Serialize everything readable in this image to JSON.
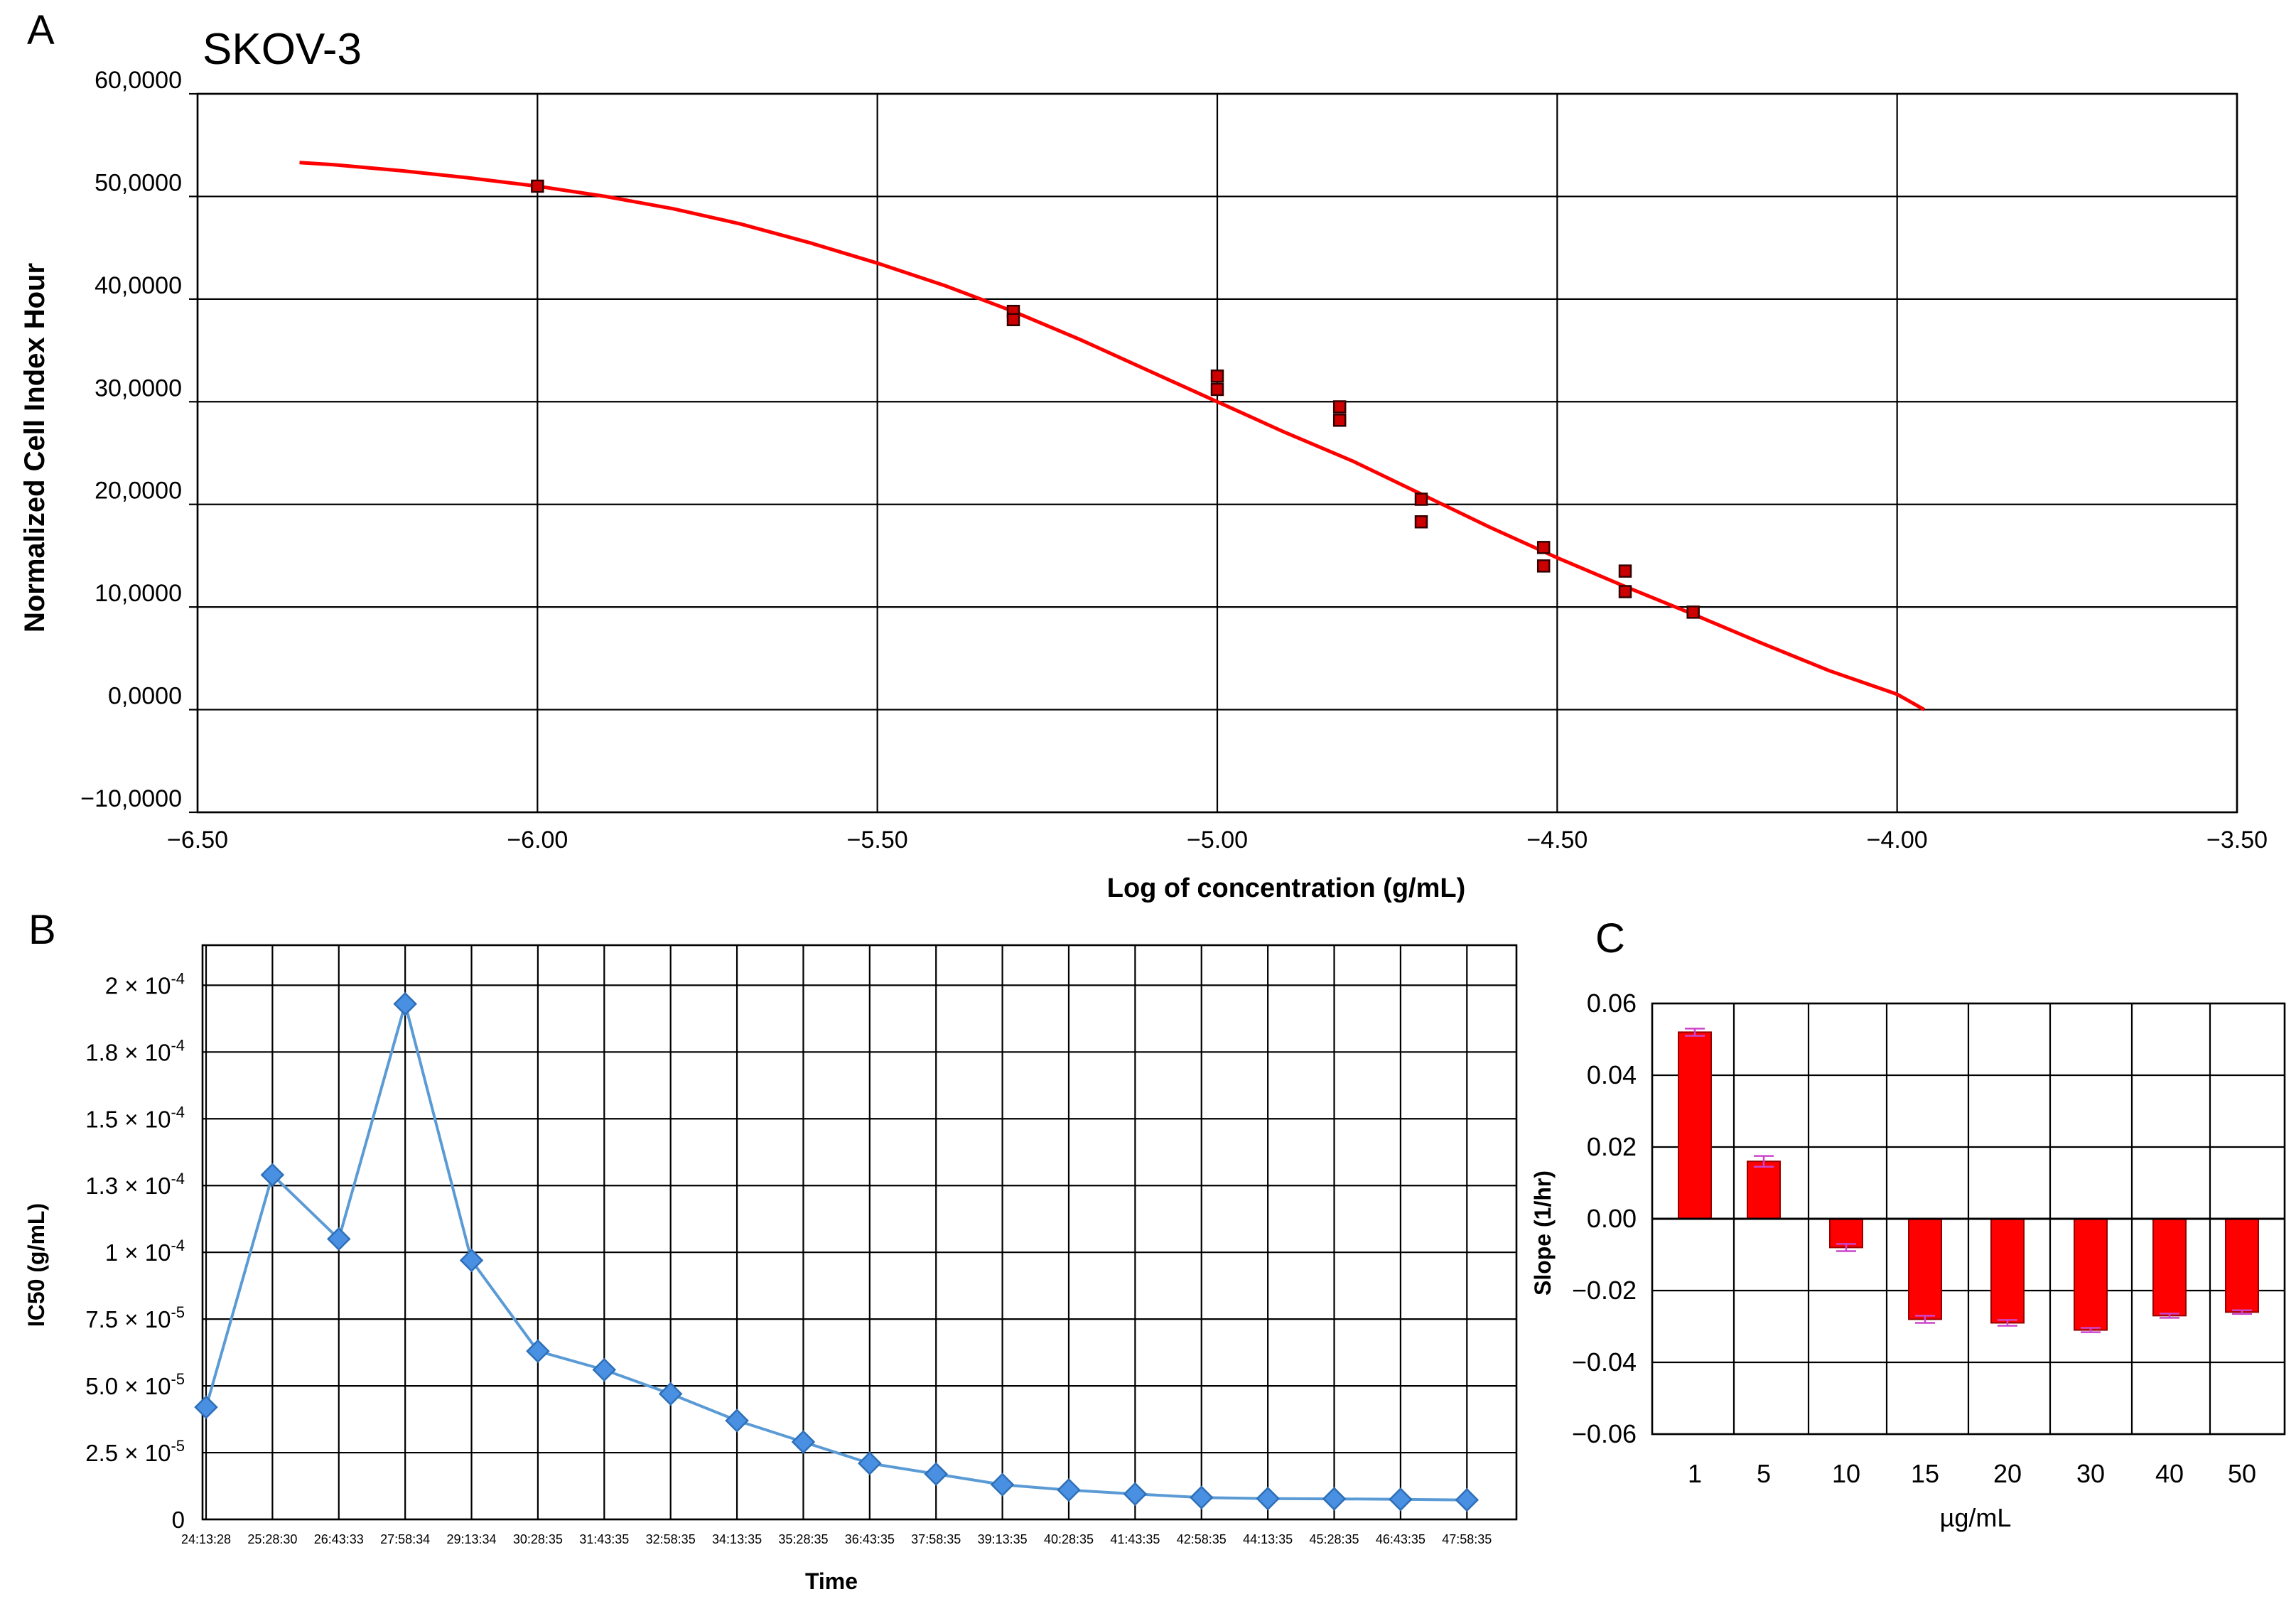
{
  "panels": {
    "a": {
      "letter": "A"
    },
    "b": {
      "letter": "B"
    },
    "c": {
      "letter": "C"
    }
  },
  "chart_data": [
    {
      "panel": "A",
      "type": "scatter",
      "title": "SKOV-3",
      "xlabel": "Log of concentration (g/mL)",
      "ylabel": "Normalized Cell Index Hour",
      "xlim": [
        -6.5,
        -3.5
      ],
      "ylim": [
        -10,
        60
      ],
      "x_ticks": [
        -6.5,
        -6.0,
        -5.5,
        -5.0,
        -4.5,
        -4.0,
        -3.5
      ],
      "x_tick_labels": [
        "−6.50",
        "−6.00",
        "−5.50",
        "−5.00",
        "−4.50",
        "−4.00",
        "−3.50"
      ],
      "y_ticks": [
        60,
        50,
        40,
        30,
        20,
        10,
        0,
        -10
      ],
      "y_tick_labels": [
        "60,0000",
        "50,0000",
        "40,0000",
        "30,0000",
        "20,0000",
        "10,0000",
        "0,0000",
        "−10,0000"
      ],
      "grid": true,
      "colors": {
        "fit": "#ff0000",
        "marker_fill": "#cc0000",
        "marker_edge": "#330000"
      },
      "points": {
        "x": [
          -6.0,
          -5.3,
          -5.3,
          -5.0,
          -5.0,
          -4.82,
          -4.82,
          -4.7,
          -4.7,
          -4.52,
          -4.52,
          -4.4,
          -4.4,
          -4.3
        ],
        "y": [
          51.0,
          38.8,
          38.0,
          32.5,
          31.2,
          29.5,
          28.2,
          20.5,
          18.3,
          15.8,
          14.0,
          13.5,
          11.5,
          9.5
        ]
      },
      "fit_curve": {
        "x": [
          -6.35,
          -6.3,
          -6.2,
          -6.1,
          -6.0,
          -5.9,
          -5.8,
          -5.7,
          -5.6,
          -5.5,
          -5.4,
          -5.3,
          -5.2,
          -5.1,
          -5.0,
          -4.9,
          -4.8,
          -4.7,
          -4.6,
          -4.5,
          -4.4,
          -4.3,
          -4.2,
          -4.1,
          -4.0,
          -3.96
        ],
        "y": [
          53.3,
          53.1,
          52.5,
          51.8,
          51.0,
          50.0,
          48.8,
          47.3,
          45.5,
          43.5,
          41.3,
          38.8,
          36.0,
          33.0,
          30.0,
          27.0,
          24.2,
          21.0,
          17.8,
          14.8,
          12.0,
          9.3,
          6.5,
          3.8,
          1.5,
          0.0
        ]
      }
    },
    {
      "panel": "B",
      "type": "line",
      "xlabel": "Time",
      "ylabel": "IC50 (g/mL)",
      "ylim": [
        0,
        0.000215
      ],
      "y_ticks": [
        0,
        2.5e-05,
        5e-05,
        7.5e-05,
        0.0001,
        0.000125,
        0.00015,
        0.000175,
        0.0002
      ],
      "y_tick_labels": [
        {
          "m": "0",
          "e": ""
        },
        {
          "m": "2.5 × 10",
          "e": "-5"
        },
        {
          "m": "5.0 × 10",
          "e": "-5"
        },
        {
          "m": "7.5 × 10",
          "e": "-5"
        },
        {
          "m": "1 × 10",
          "e": "-4"
        },
        {
          "m": "1.3 × 10",
          "e": "-4"
        },
        {
          "m": "1.5 × 10",
          "e": "-4"
        },
        {
          "m": "1.8 × 10",
          "e": "-4"
        },
        {
          "m": "2 × 10",
          "e": "-4"
        }
      ],
      "categories": [
        "24:13:28",
        "25:28:30",
        "26:43:33",
        "27:58:34",
        "29:13:34",
        "30:28:35",
        "31:43:35",
        "32:58:35",
        "34:13:35",
        "35:28:35",
        "36:43:35",
        "37:58:35",
        "39:13:35",
        "40:28:35",
        "41:43:35",
        "42:58:35",
        "44:13:35",
        "45:28:35",
        "46:43:35",
        "47:58:35"
      ],
      "values": [
        4.2e-05,
        0.000129,
        0.000105,
        0.000193,
        9.7e-05,
        6.3e-05,
        5.6e-05,
        4.7e-05,
        3.7e-05,
        2.9e-05,
        2.1e-05,
        1.7e-05,
        1.3e-05,
        1.1e-05,
        9.5e-06,
        8.2e-06,
        7.8e-06,
        7.7e-06,
        7.5e-06,
        7.3e-06
      ],
      "grid": true,
      "colors": {
        "line": "#5b9bd5",
        "marker": "#4a90e2",
        "marker_edge": "#2e6fb8"
      }
    },
    {
      "panel": "C",
      "type": "bar",
      "xlabel": "µg/mL",
      "ylabel": "Slope (1/hr)",
      "ylim": [
        -0.06,
        0.06
      ],
      "y_ticks": [
        0.06,
        0.04,
        0.02,
        0.0,
        -0.02,
        -0.04,
        -0.06
      ],
      "y_tick_labels": [
        "0.06",
        "0.04",
        "0.02",
        "0.00",
        "−0.02",
        "−0.04",
        "−0.06"
      ],
      "categories": [
        "1",
        "5",
        "10",
        "15",
        "20",
        "30",
        "40",
        "50"
      ],
      "values": [
        0.052,
        0.016,
        -0.008,
        -0.028,
        -0.029,
        -0.031,
        -0.027,
        -0.026
      ],
      "errors": [
        0.001,
        0.0015,
        0.001,
        0.001,
        0.0008,
        0.0006,
        0.0006,
        0.0005
      ],
      "grid": true,
      "colors": {
        "bar": "#ff0000",
        "bar_edge": "#990000",
        "error": "#cc44cc"
      }
    }
  ]
}
